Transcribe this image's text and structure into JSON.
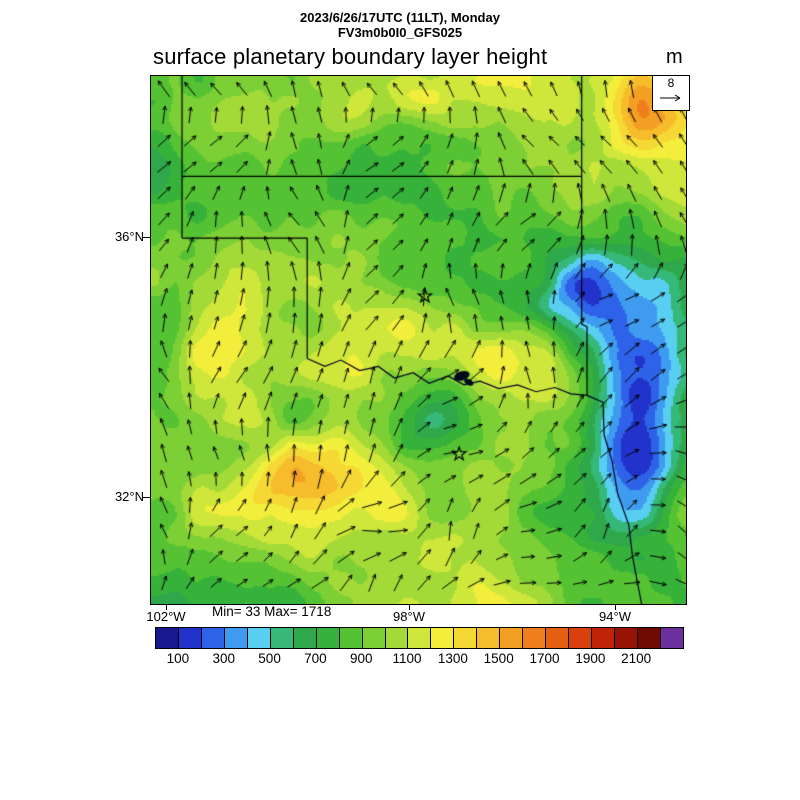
{
  "header": {
    "line1": "2023/6/26/17UTC (11LT), Monday",
    "line2": "FV3m0b0I0_GFS025"
  },
  "title": {
    "text": "surface planetary boundary layer height",
    "unit": "m"
  },
  "wind_reference": {
    "value": "8"
  },
  "axes": {
    "lat": [
      "36°N",
      "32°N"
    ],
    "lon": [
      "102°W",
      "98°W",
      "94°W"
    ]
  },
  "stats": "Min= 33 Max= 1718",
  "chart_data": {
    "type": "heatmap",
    "title": "surface planetary boundary layer height",
    "units": "m",
    "valid_time": "2023/6/26/17UTC (11LT), Monday",
    "model": "FV3m0b0I0_GFS025",
    "min_value": 33,
    "max_value": 1718,
    "overlay": "wind-vectors",
    "wind_reference_speed": 8,
    "x_ticks": [
      "102°W",
      "98°W",
      "94°W"
    ],
    "y_ticks": [
      "36°N",
      "32°N"
    ],
    "level_step": 100,
    "value_domain": [
      0,
      2300
    ],
    "colorbar_levels": [
      100,
      300,
      500,
      700,
      900,
      1100,
      1300,
      1500,
      1700,
      1900,
      2100
    ],
    "colorbar_colors": [
      "#18188f",
      "#2233cc",
      "#2e62e8",
      "#3f9bf0",
      "#58cef0",
      "#35b878",
      "#2ea84a",
      "#36b23a",
      "#55c233",
      "#7ccf35",
      "#a3da37",
      "#cfe73a",
      "#f2ee3b",
      "#f5d834",
      "#f6bc2c",
      "#f39f24",
      "#ee7f1c",
      "#e66014",
      "#da400e",
      "#c02408",
      "#971305",
      "#6f0b03",
      "#6b2f9e"
    ]
  }
}
